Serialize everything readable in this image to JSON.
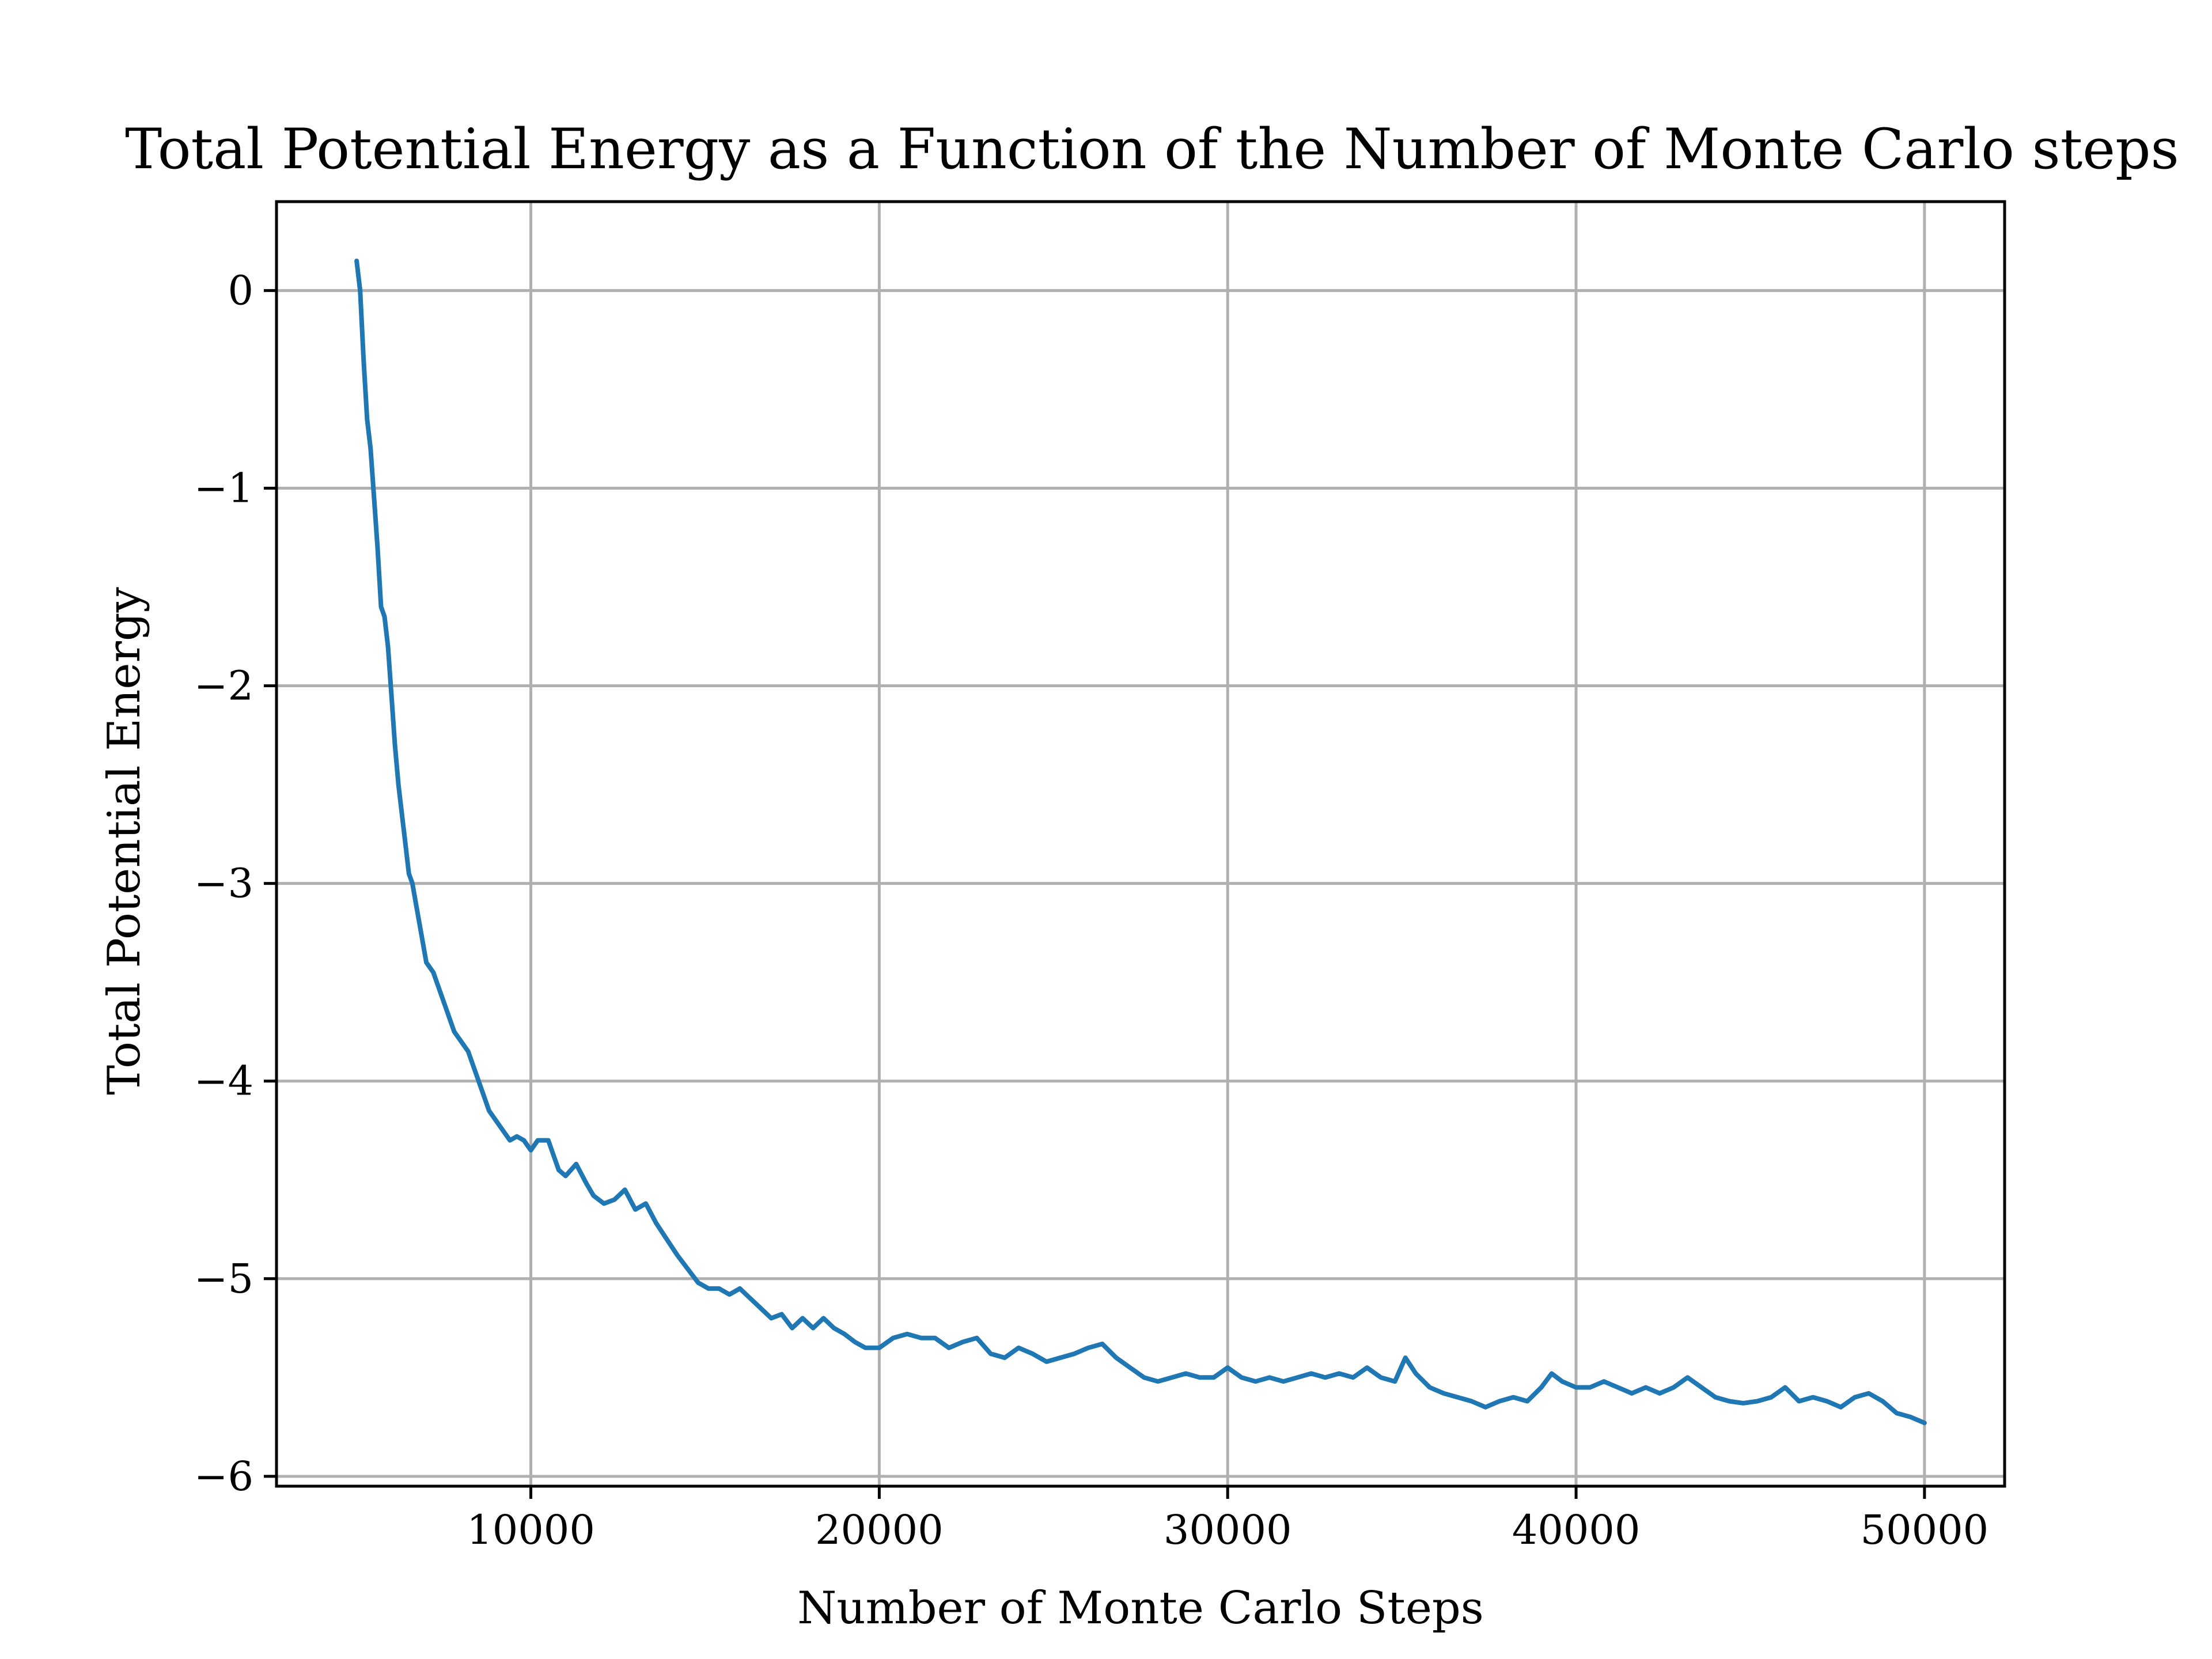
{
  "chart_data": {
    "type": "line",
    "title": "Total Potential Energy as a Function of the Number of Monte Carlo steps",
    "xlabel": "Number of Monte Carlo Steps",
    "ylabel": "Total Potential Energy",
    "xlim": [
      2700,
      52300
    ],
    "ylim": [
      -6.05,
      0.45
    ],
    "x_ticks": [
      10000,
      20000,
      30000,
      40000,
      50000
    ],
    "x_tick_labels": [
      "10000",
      "20000",
      "30000",
      "40000",
      "50000"
    ],
    "y_ticks": [
      0,
      -1,
      -2,
      -3,
      -4,
      -5,
      -6
    ],
    "y_tick_labels": [
      "0",
      "−1",
      "−2",
      "−3",
      "−4",
      "−5",
      "−6"
    ],
    "grid": true,
    "legend": "none",
    "series": [
      {
        "color": "#1f77b4",
        "x": [
          5000,
          5100,
          5200,
          5300,
          5400,
          5500,
          5600,
          5700,
          5800,
          5900,
          6000,
          6100,
          6200,
          6300,
          6400,
          6500,
          6600,
          6700,
          6800,
          7000,
          7200,
          7400,
          7600,
          7800,
          8000,
          8200,
          8400,
          8600,
          8800,
          9000,
          9200,
          9400,
          9600,
          9800,
          10000,
          10200,
          10500,
          10800,
          11000,
          11300,
          11600,
          11800,
          12100,
          12400,
          12700,
          13000,
          13300,
          13600,
          13900,
          14200,
          14500,
          14800,
          15100,
          15400,
          15700,
          16000,
          16300,
          16600,
          16900,
          17200,
          17500,
          17800,
          18100,
          18400,
          18700,
          19000,
          19300,
          19600,
          20000,
          20400,
          20800,
          21200,
          21600,
          22000,
          22400,
          22800,
          23200,
          23600,
          24000,
          24400,
          24800,
          25200,
          25600,
          26000,
          26400,
          26800,
          27200,
          27600,
          28000,
          28400,
          28800,
          29200,
          29600,
          30000,
          30400,
          30800,
          31200,
          31600,
          32000,
          32400,
          32800,
          33200,
          33600,
          34000,
          34400,
          34800,
          35100,
          35400,
          35800,
          36200,
          36600,
          37000,
          37400,
          37800,
          38200,
          38600,
          39000,
          39300,
          39600,
          40000,
          40400,
          40800,
          41200,
          41600,
          42000,
          42400,
          42800,
          43200,
          43600,
          44000,
          44400,
          44800,
          45200,
          45600,
          46000,
          46400,
          46800,
          47200,
          47600,
          48000,
          48400,
          48800,
          49200,
          49600,
          50000
        ],
        "y": [
          0.15,
          0.0,
          -0.35,
          -0.65,
          -0.8,
          -1.05,
          -1.3,
          -1.6,
          -1.65,
          -1.8,
          -2.05,
          -2.3,
          -2.5,
          -2.65,
          -2.8,
          -2.95,
          -3.0,
          -3.1,
          -3.2,
          -3.4,
          -3.45,
          -3.55,
          -3.65,
          -3.75,
          -3.8,
          -3.85,
          -3.95,
          -4.05,
          -4.15,
          -4.2,
          -4.25,
          -4.3,
          -4.28,
          -4.3,
          -4.35,
          -4.3,
          -4.3,
          -4.45,
          -4.48,
          -4.42,
          -4.52,
          -4.58,
          -4.62,
          -4.6,
          -4.55,
          -4.65,
          -4.62,
          -4.72,
          -4.8,
          -4.88,
          -4.95,
          -5.02,
          -5.05,
          -5.05,
          -5.08,
          -5.05,
          -5.1,
          -5.15,
          -5.2,
          -5.18,
          -5.25,
          -5.2,
          -5.25,
          -5.2,
          -5.25,
          -5.28,
          -5.32,
          -5.35,
          -5.35,
          -5.3,
          -5.28,
          -5.3,
          -5.3,
          -5.35,
          -5.32,
          -5.3,
          -5.38,
          -5.4,
          -5.35,
          -5.38,
          -5.42,
          -5.4,
          -5.38,
          -5.35,
          -5.33,
          -5.4,
          -5.45,
          -5.5,
          -5.52,
          -5.5,
          -5.48,
          -5.5,
          -5.5,
          -5.45,
          -5.5,
          -5.52,
          -5.5,
          -5.52,
          -5.5,
          -5.48,
          -5.5,
          -5.48,
          -5.5,
          -5.45,
          -5.5,
          -5.52,
          -5.4,
          -5.48,
          -5.55,
          -5.58,
          -5.6,
          -5.62,
          -5.65,
          -5.62,
          -5.6,
          -5.62,
          -5.55,
          -5.48,
          -5.52,
          -5.55,
          -5.55,
          -5.52,
          -5.55,
          -5.58,
          -5.55,
          -5.58,
          -5.55,
          -5.5,
          -5.55,
          -5.6,
          -5.62,
          -5.63,
          -5.62,
          -5.6,
          -5.55,
          -5.62,
          -5.6,
          -5.62,
          -5.65,
          -5.6,
          -5.58,
          -5.62,
          -5.68,
          -5.7,
          -5.73
        ]
      }
    ]
  }
}
